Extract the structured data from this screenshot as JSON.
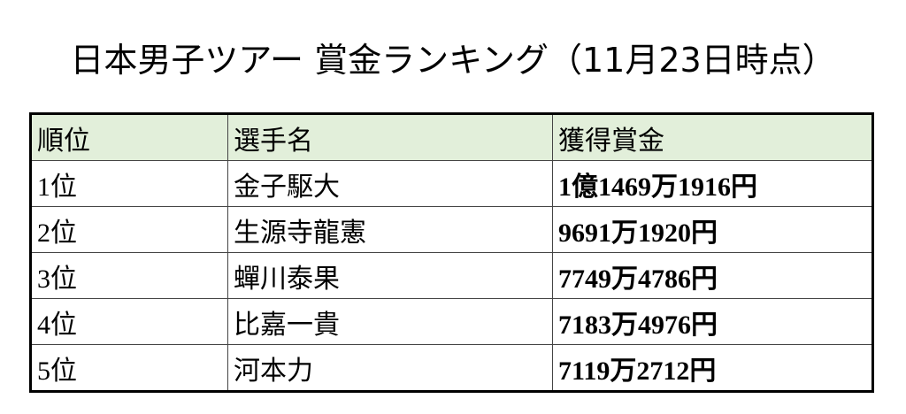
{
  "title": "日本男子ツアー 賞金ランキング（11月23日時点）",
  "table": {
    "header_color": "#e2efda",
    "columns": [
      "順位",
      "選手名",
      "獲得賞金"
    ],
    "rows": [
      [
        "1位",
        "金子駆大",
        "1億1469万1916円"
      ],
      [
        "2位",
        "生源寺龍憲",
        "9691万1920円"
      ],
      [
        "3位",
        "蟬川泰果",
        "7749万4786円"
      ],
      [
        "4位",
        "比嘉一貴",
        "7183万4976円"
      ],
      [
        "5位",
        "河本力",
        "7119万2712円"
      ]
    ]
  }
}
